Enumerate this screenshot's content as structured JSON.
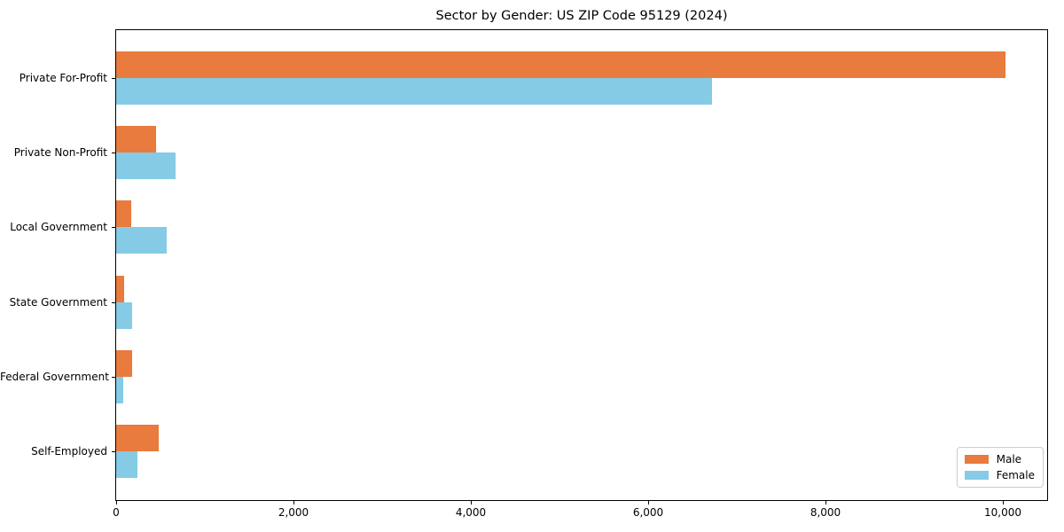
{
  "chart_data": {
    "type": "bar",
    "orientation": "horizontal",
    "title": "Sector by Gender: US ZIP Code 95129 (2024)",
    "categories": [
      "Private For-Profit",
      "Private Non-Profit",
      "Local Government",
      "State Government",
      "Federal Government",
      "Self-Employed"
    ],
    "series": [
      {
        "name": "Male",
        "color": "#e87b3d",
        "values": [
          10030,
          450,
          170,
          90,
          180,
          480
        ]
      },
      {
        "name": "Female",
        "color": "#85cbe5",
        "values": [
          6720,
          670,
          570,
          180,
          80,
          240
        ]
      }
    ],
    "xlabel": "",
    "ylabel": "",
    "x_ticks": [
      0,
      2000,
      4000,
      6000,
      8000,
      10000
    ],
    "x_tick_labels": [
      "0",
      "2,000",
      "4,000",
      "6,000",
      "8,000",
      "10,000"
    ],
    "xlim": [
      0,
      10500
    ],
    "grid": false,
    "legend_position": "lower right",
    "axis_color": "#000000",
    "legend_border_color": "#cccccc"
  }
}
